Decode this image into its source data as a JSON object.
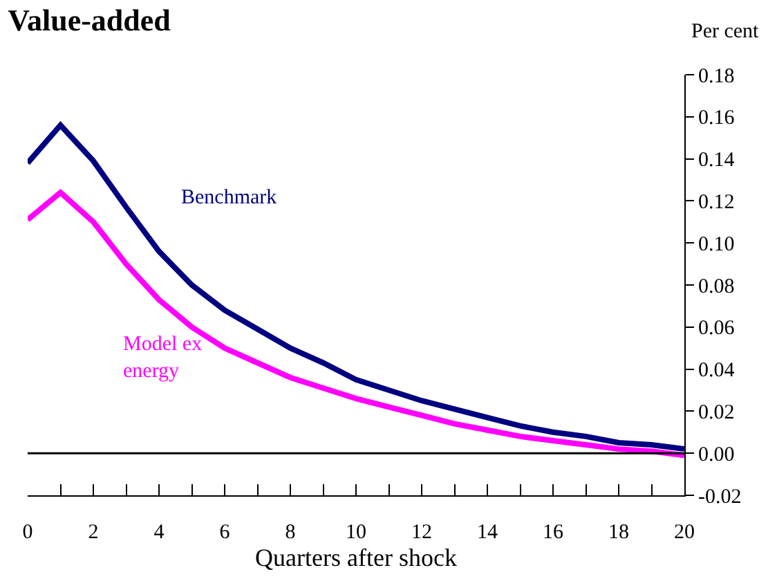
{
  "chart_data": {
    "type": "line",
    "title": "Value-added",
    "ylabel": "Per cent",
    "xlabel": "Quarters after shock",
    "x": [
      0,
      1,
      2,
      3,
      4,
      5,
      6,
      7,
      8,
      9,
      10,
      11,
      12,
      13,
      14,
      15,
      16,
      17,
      18,
      19,
      20
    ],
    "series": [
      {
        "name": "Benchmark",
        "color": "#000080",
        "values": [
          0.138,
          0.156,
          0.139,
          0.117,
          0.096,
          0.08,
          0.068,
          0.059,
          0.05,
          0.043,
          0.035,
          0.03,
          0.025,
          0.021,
          0.017,
          0.013,
          0.01,
          0.008,
          0.005,
          0.004,
          0.002
        ]
      },
      {
        "name": "Model ex energy",
        "color": "#ff00ff",
        "values": [
          0.111,
          0.124,
          0.11,
          0.09,
          0.073,
          0.06,
          0.05,
          0.043,
          0.036,
          0.031,
          0.026,
          0.022,
          0.018,
          0.014,
          0.011,
          0.008,
          0.006,
          0.004,
          0.002,
          0.001,
          -0.001
        ]
      }
    ],
    "xlim": [
      0,
      20
    ],
    "xticks": [
      0,
      {
        "value": 1,
        "label": null
      },
      2,
      {
        "value": 3,
        "label": null
      },
      4,
      {
        "value": 5,
        "label": null
      },
      6,
      {
        "value": 7,
        "label": null
      },
      8,
      {
        "value": 9,
        "label": null
      },
      10,
      {
        "value": 11,
        "label": null
      },
      12,
      {
        "value": 13,
        "label": null
      },
      14,
      {
        "value": 15,
        "label": null
      },
      16,
      {
        "value": 17,
        "label": null
      },
      18,
      {
        "value": 19,
        "label": null
      },
      20
    ],
    "ylim": [
      -0.02,
      0.18
    ],
    "yticks": [
      {
        "value": -0.02,
        "label": "-0.02"
      },
      {
        "value": 0,
        "label": "0.00"
      },
      {
        "value": 0.02,
        "label": "0.02"
      },
      {
        "value": 0.04,
        "label": "0.04"
      },
      {
        "value": 0.06,
        "label": "0.06"
      },
      {
        "value": 0.08,
        "label": "0.08"
      },
      {
        "value": 0.1,
        "label": "0.10"
      },
      {
        "value": 0.12,
        "label": "0.12"
      },
      {
        "value": 0.14,
        "label": "0.14"
      },
      {
        "value": 0.16,
        "label": "0.16"
      },
      {
        "value": 0.18,
        "label": "0.18"
      }
    ],
    "ref_lines": [
      {
        "axis": "y",
        "value": 0,
        "color": "#000000"
      }
    ],
    "legend": false,
    "marker": "none",
    "line_style": "solid"
  }
}
